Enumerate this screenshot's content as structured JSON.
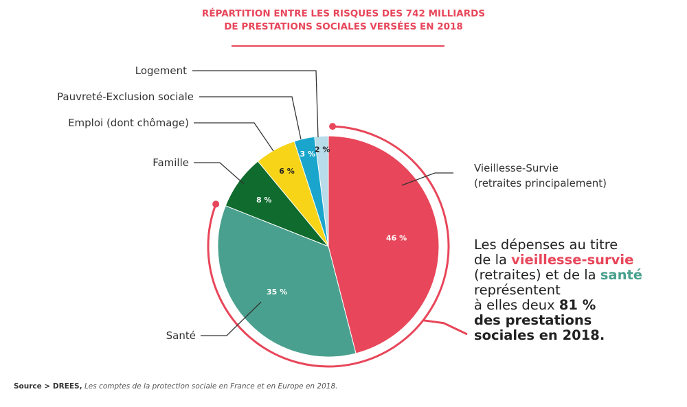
{
  "chart_data": {
    "type": "pie",
    "title": "RÉPARTITION ENTRE LES RISQUES DES 742 MILLIARDS DE PRESTATIONS SOCIALES VERSÉES EN 2018",
    "title_lines": [
      "RÉPARTITION ENTRE LES RISQUES DES 742 MILLIARDS",
      "DE PRESTATIONS SOCIALES VERSÉES EN 2018"
    ],
    "start": "top",
    "direction": "clockwise",
    "slices": [
      {
        "label": "Vieillesse-Survie",
        "label_line2": "(retraites principalement)",
        "value": 46,
        "data_label": "46 %",
        "color": "#e8465a"
      },
      {
        "label": "Santé",
        "value": 35,
        "data_label": "35 %",
        "color": "#4aa08e"
      },
      {
        "label": "Famille",
        "value": 8,
        "data_label": "8 %",
        "color": "#0f6b2e"
      },
      {
        "label": "Emploi (dont chômage)",
        "value": 6,
        "data_label": "6 %",
        "color": "#f7d417"
      },
      {
        "label": "Pauvreté-Exclusion sociale",
        "value": 3,
        "data_label": "3 %",
        "color": "#1aa6cc"
      },
      {
        "label": "Logement",
        "value": 2,
        "data_label": "2 %",
        "color": "#b8dcea"
      }
    ],
    "annotation": {
      "l1": "Les dépenses au titre",
      "l2a": "de la ",
      "l2b": "vieillesse-survie",
      "l3a": "(retraites) et de la ",
      "l3b": "santé",
      "l4": "représentent",
      "l5a": "à elles deux ",
      "l5b": "81 %",
      "l6": "des prestations",
      "l7": "sociales en 2018."
    },
    "accent_color": "#e8465a"
  },
  "source": {
    "label": "Source > DREES,",
    "text": "Les comptes de la protection sociale en France et en Europe en 2018."
  }
}
